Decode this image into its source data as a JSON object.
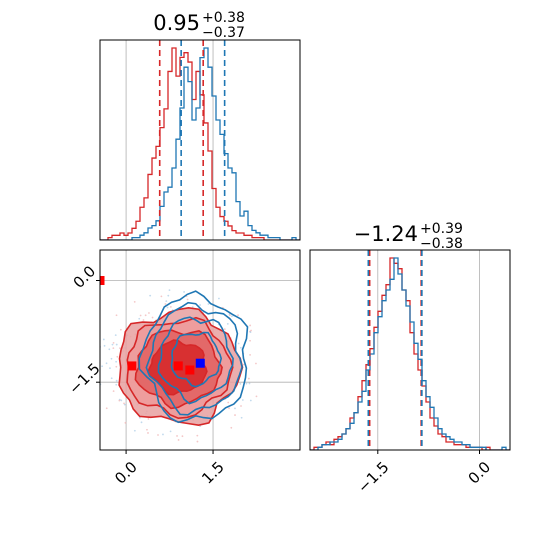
{
  "chart_data": {
    "type": "corner",
    "colors": {
      "red": "#d62728",
      "blue": "#1f77b4",
      "red_fill": "#e8a0a0",
      "red_fill_mid": "#e06060",
      "grid": "#b0b0b0"
    },
    "titles": {
      "p1": {
        "main": "0.95",
        "sup": "+0.38",
        "sub": "−0.37"
      },
      "p2": {
        "main": "−1.24",
        "sup": "+0.39",
        "sub": "−0.38"
      }
    },
    "ticks": {
      "p1": [
        {
          "value": 0.0,
          "label": "0.0"
        },
        {
          "value": 1.5,
          "label": "1.5"
        }
      ],
      "p2": [
        {
          "value": -1.5,
          "label": "−1.5"
        },
        {
          "value": 0.0,
          "label": "0.0"
        }
      ]
    },
    "ranges": {
      "p1": [
        -0.45,
        3.0
      ],
      "p2": [
        -2.5,
        0.45
      ]
    },
    "grid": true,
    "quantiles": {
      "p1": {
        "red": [
          0.58,
          1.33
        ],
        "blue": [
          0.95,
          1.7
        ]
      },
      "p2": {
        "red": [
          -1.62,
          -0.86
        ],
        "blue": [
          -1.64,
          -0.85
        ]
      }
    },
    "hist_p1": {
      "x_start": -0.45,
      "bin_width": 0.069,
      "red": [
        0,
        0,
        1,
        2,
        2,
        3,
        2,
        3,
        5,
        8,
        14,
        18,
        28,
        35,
        40,
        48,
        56,
        72,
        82,
        70,
        78,
        80,
        76,
        60,
        72,
        62,
        50,
        38,
        22,
        14,
        10,
        8,
        6,
        4,
        3,
        3,
        2,
        2,
        1,
        1,
        1,
        0,
        0,
        0,
        0,
        0,
        0,
        0,
        0,
        0
      ],
      "blue": [
        0,
        0,
        0,
        0,
        0,
        0,
        0,
        0,
        1,
        1,
        2,
        3,
        5,
        6,
        8,
        14,
        20,
        22,
        30,
        42,
        55,
        72,
        66,
        50,
        55,
        76,
        80,
        72,
        60,
        50,
        44,
        36,
        30,
        28,
        16,
        10,
        12,
        6,
        4,
        3,
        2,
        2,
        1,
        1,
        1,
        0,
        0,
        0,
        1,
        0
      ]
    },
    "hist_p2": {
      "x_start": -2.5,
      "bin_width": 0.059,
      "red": [
        0,
        1,
        1,
        2,
        3,
        2,
        4,
        5,
        6,
        8,
        12,
        14,
        20,
        26,
        32,
        38,
        46,
        52,
        58,
        62,
        72,
        70,
        68,
        60,
        56,
        44,
        36,
        30,
        24,
        18,
        12,
        9,
        6,
        5,
        3,
        3,
        2,
        2,
        2,
        1,
        1,
        1,
        1,
        0,
        1,
        0,
        0,
        0,
        0,
        0
      ],
      "blue": [
        0,
        0,
        1,
        2,
        2,
        3,
        3,
        4,
        6,
        8,
        10,
        14,
        18,
        22,
        30,
        36,
        44,
        50,
        56,
        60,
        64,
        72,
        66,
        60,
        54,
        48,
        40,
        34,
        26,
        20,
        16,
        12,
        8,
        6,
        5,
        4,
        3,
        3,
        2,
        2,
        1,
        1,
        1,
        1,
        0,
        0,
        0,
        0,
        1,
        0
      ]
    },
    "markers": {
      "red": [
        {
          "x": -0.45,
          "y": 0.0
        },
        {
          "x": 0.1,
          "y": -1.26
        },
        {
          "x": 0.9,
          "y": -1.26
        },
        {
          "x": 1.1,
          "y": -1.32
        }
      ],
      "blue": [
        {
          "x": 1.28,
          "y": -1.22
        }
      ]
    },
    "contours": {
      "red": {
        "cx": 0.9,
        "cy": -1.28,
        "radii": [
          [
            0.48,
            0.38
          ],
          [
            0.72,
            0.55
          ],
          [
            0.9,
            0.7
          ],
          [
            1.05,
            0.83
          ]
        ]
      },
      "blue": {
        "cx": 1.2,
        "cy": -1.15,
        "radii": [
          [
            0.42,
            0.38
          ],
          [
            0.62,
            0.6
          ],
          [
            0.78,
            0.78
          ],
          [
            0.9,
            0.92
          ]
        ]
      }
    }
  }
}
